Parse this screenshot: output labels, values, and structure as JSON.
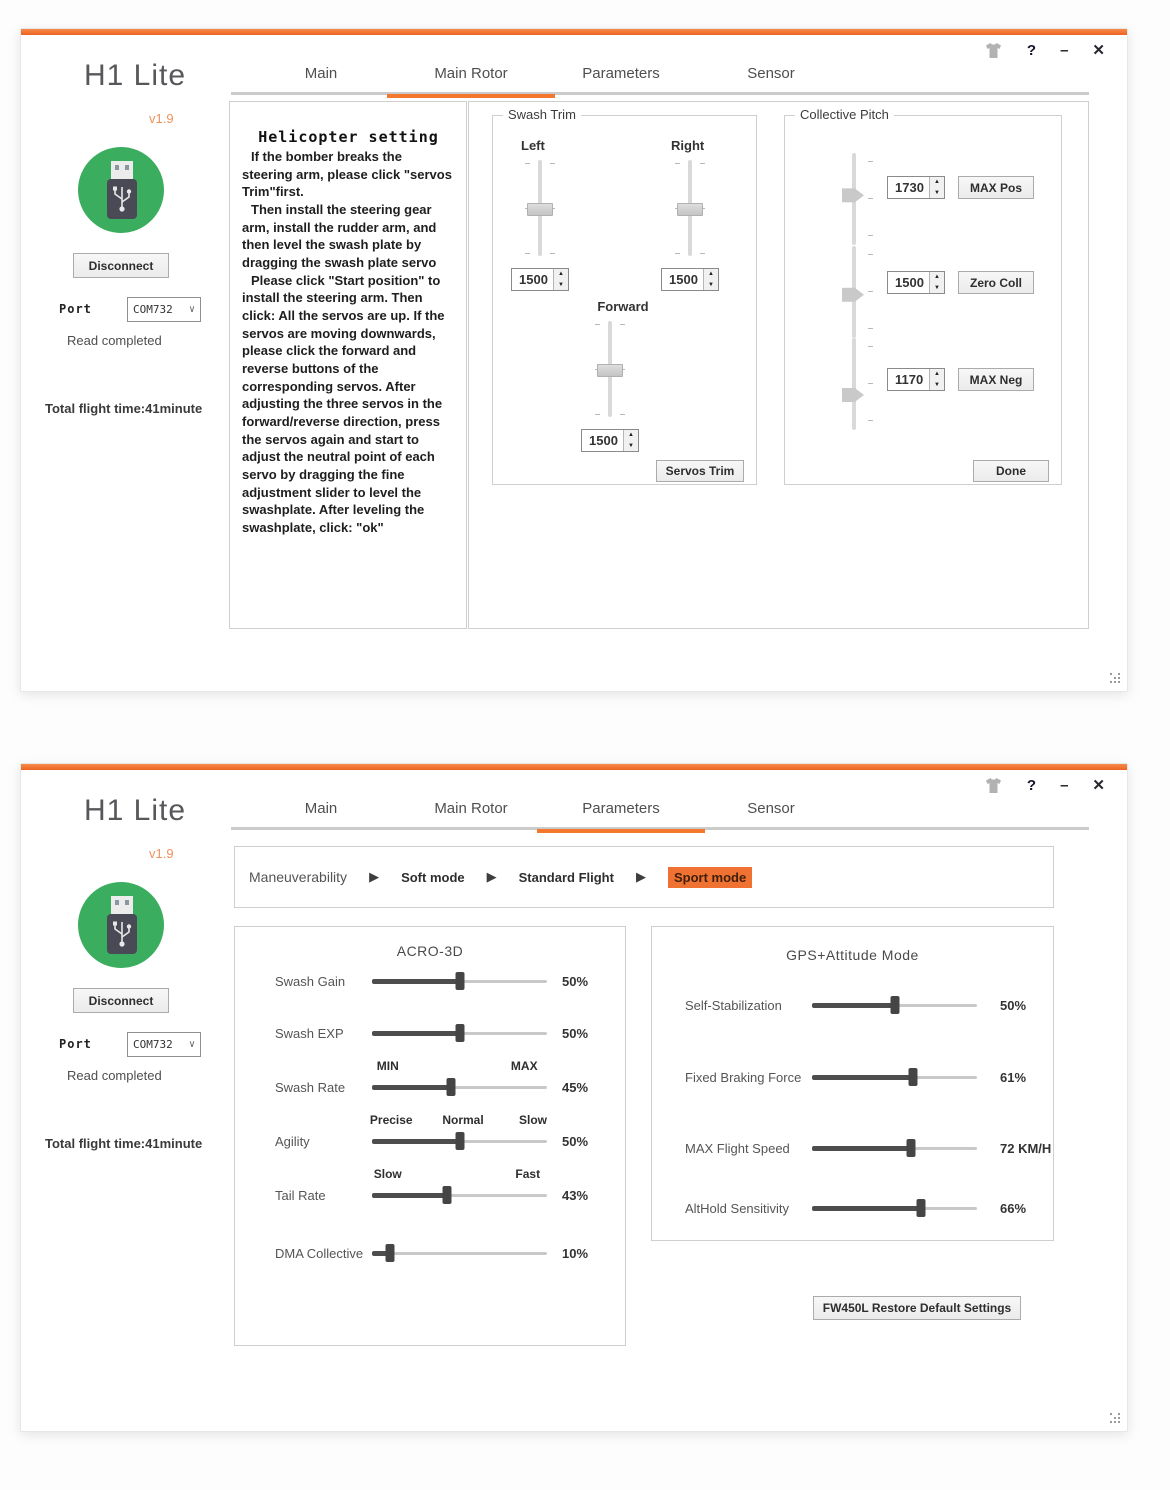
{
  "colors": {
    "accent_orange": "#ef6c26",
    "tab_underline": "#f4772e",
    "sport_chip": "#ef7233",
    "usb_green": "#3aad5e"
  },
  "titlebar": {
    "help": "?",
    "minimize": "–",
    "close": "✕"
  },
  "brand": {
    "title": "H1 Lite",
    "version": "v1.9"
  },
  "sidebar": {
    "disconnect": "Disconnect",
    "port_label": "Port",
    "port_value": "COM732",
    "status": "Read completed",
    "flight_time": "Total flight time:41minute"
  },
  "tabs": [
    "Main",
    "Main Rotor",
    "Parameters",
    "Sensor"
  ],
  "win1": {
    "active_tab": "Main Rotor",
    "instructions": {
      "title": "Helicopter setting",
      "p1": "If the bomber breaks the steering arm, please click \"servos Trim\"first.",
      "p2": "Then install the steering gear arm, install the rudder arm, and then level the swash plate by dragging the swash plate servo",
      "p3": "Please click \"Start position\" to install the steering arm. Then click: All the servos are up. If the servos are moving downwards, please click the forward and reverse buttons of the corresponding servos. After adjusting the three servos in the forward/reverse direction, press the servos again and start to adjust the neutral point of each servo by dragging the fine adjustment slider to level the swashplate. After leveling the swashplate, click: \"ok\""
    },
    "swash_trim": {
      "legend": "Swash Trim",
      "left": {
        "label": "Left",
        "value": "1500",
        "pct": 50
      },
      "right": {
        "label": "Right",
        "value": "1500",
        "pct": 50
      },
      "forward": {
        "label": "Forward",
        "value": "1500",
        "pct": 50
      },
      "button": "Servos Trim"
    },
    "collective_pitch": {
      "legend": "Collective Pitch",
      "rows": [
        {
          "value": "1730",
          "button": "MAX Pos",
          "pct": 46
        },
        {
          "value": "1500",
          "button": "Zero Coll",
          "pct": 53
        },
        {
          "value": "1170",
          "button": "MAX Neg",
          "pct": 62
        }
      ],
      "done": "Done"
    }
  },
  "win2": {
    "active_tab": "Parameters",
    "maneuverability": {
      "label": "Maneuverability",
      "modes": [
        "Soft mode",
        "Standard Flight",
        "Sport mode"
      ],
      "active": "Sport mode"
    },
    "acro": {
      "title": "ACRO-3D",
      "sliders": [
        {
          "label": "Swash Gain",
          "value": "50%",
          "pct": 50,
          "marks": []
        },
        {
          "label": "Swash EXP",
          "value": "50%",
          "pct": 50,
          "marks": []
        },
        {
          "label": "Swash Rate",
          "value": "45%",
          "pct": 45,
          "marks": [
            {
              "t": "MIN",
              "x": 9
            },
            {
              "t": "MAX",
              "x": 87
            }
          ]
        },
        {
          "label": "Agility",
          "value": "50%",
          "pct": 50,
          "marks": [
            {
              "t": "Precise",
              "x": 11
            },
            {
              "t": "Normal",
              "x": 52
            },
            {
              "t": "Slow",
              "x": 92
            }
          ]
        },
        {
          "label": "Tail Rate",
          "value": "43%",
          "pct": 43,
          "marks": [
            {
              "t": "Slow",
              "x": 9
            },
            {
              "t": "Fast",
              "x": 89
            }
          ]
        },
        {
          "label": "DMA Collective",
          "value": "10%",
          "pct": 10,
          "marks": []
        }
      ]
    },
    "gps": {
      "title": "GPS+Attitude Mode",
      "sliders": [
        {
          "label": "Self-Stabilization",
          "value": "50%",
          "pct": 50
        },
        {
          "label": "Fixed Braking Force",
          "value": "61%",
          "pct": 61
        },
        {
          "label": "MAX Flight Speed",
          "value": "72 KM/H",
          "pct": 60
        },
        {
          "label": "AltHold Sensitivity",
          "value": "66%",
          "pct": 66
        }
      ]
    },
    "restore_button": "FW450L Restore Default Settings"
  }
}
